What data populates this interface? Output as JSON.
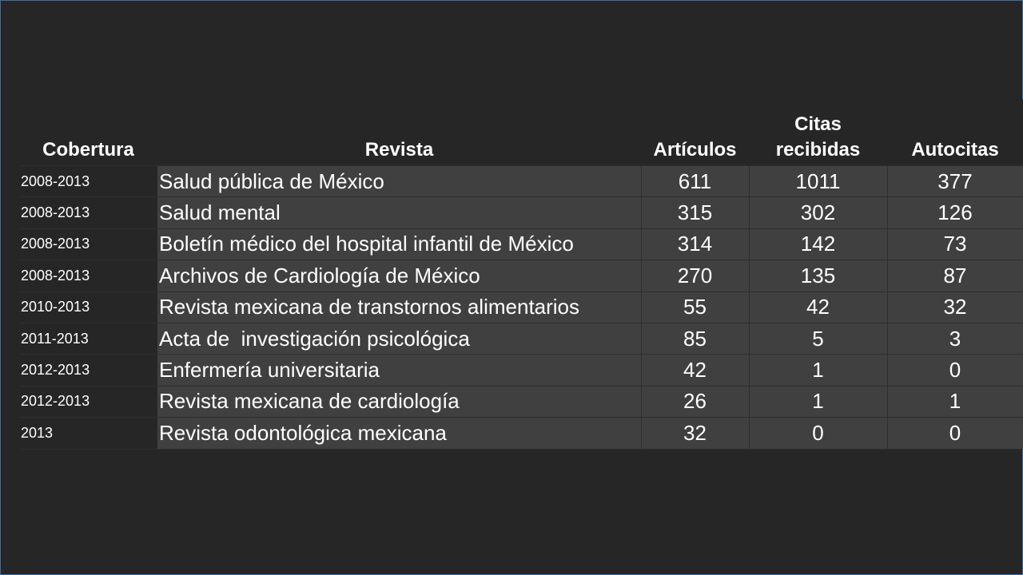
{
  "table": {
    "headers": {
      "cobertura": "Cobertura",
      "revista": "Revista",
      "articulos": "Artículos",
      "citas_line1": "Citas",
      "citas_line2": "recibidas",
      "autocitas": "Autocitas"
    },
    "rows": [
      {
        "cobertura": "2008-2013",
        "revista": "Salud pública de México",
        "articulos": "611",
        "citas": "1011",
        "autocitas": "377"
      },
      {
        "cobertura": "2008-2013",
        "revista": "Salud mental",
        "articulos": "315",
        "citas": "302",
        "autocitas": "126"
      },
      {
        "cobertura": "2008-2013",
        "revista": "Boletín médico del hospital infantil de México",
        "articulos": "314",
        "citas": "142",
        "autocitas": "73"
      },
      {
        "cobertura": "2008-2013",
        "revista": "Archivos de Cardiología de México",
        "articulos": "270",
        "citas": "135",
        "autocitas": "87"
      },
      {
        "cobertura": "2010-2013",
        "revista": "Revista mexicana de transtornos alimentarios",
        "articulos": "55",
        "citas": "42",
        "autocitas": "32"
      },
      {
        "cobertura": "2011-2013",
        "revista": "Acta de  investigación psicológica",
        "articulos": "85",
        "citas": "5",
        "autocitas": "3"
      },
      {
        "cobertura": "2012-2013",
        "revista": "Enfermería universitaria",
        "articulos": "42",
        "citas": "1",
        "autocitas": "0"
      },
      {
        "cobertura": "2012-2013",
        "revista": "Revista mexicana de cardiología",
        "articulos": "26",
        "citas": "1",
        "autocitas": "1"
      },
      {
        "cobertura": "2013",
        "revista": "Revista odontológica mexicana",
        "articulos": "32",
        "citas": "0",
        "autocitas": "0"
      }
    ]
  }
}
